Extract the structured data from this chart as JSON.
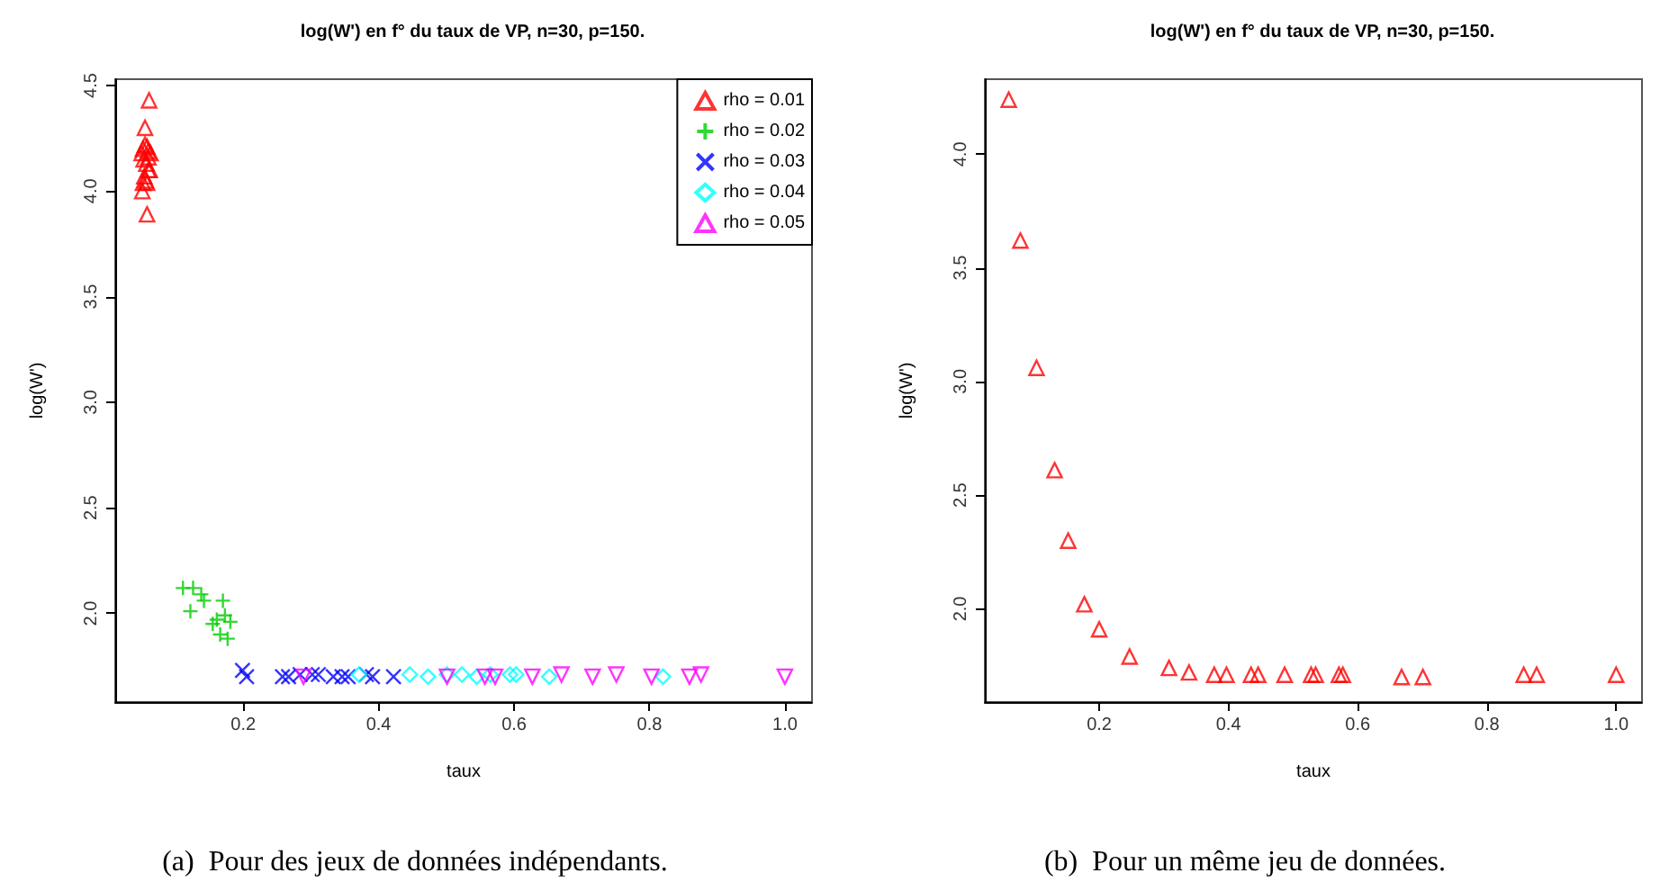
{
  "chart_data": [
    {
      "type": "scatter",
      "title": "log(W') en f° du taux de VP, n=30, p=150.",
      "xlabel": "taux",
      "ylabel": "log(W')",
      "annotations": [
        "(a)  Pour des jeux de données indépendants."
      ],
      "xlim": [
        0.011,
        1.04
      ],
      "ylim": [
        1.58,
        4.53
      ],
      "xticks": [
        {
          "value": 0.2,
          "label": "0.2"
        },
        {
          "value": 0.4,
          "label": "0.4"
        },
        {
          "value": 0.6,
          "label": "0.6"
        },
        {
          "value": 0.8,
          "label": "0.8"
        },
        {
          "value": 1,
          "label": "1.0"
        }
      ],
      "yticks": [
        {
          "value": 2,
          "label": "2.0"
        },
        {
          "value": 2.5,
          "label": "2.5"
        },
        {
          "value": 3,
          "label": "3.0"
        },
        {
          "value": 3.5,
          "label": "3.5"
        },
        {
          "value": 4,
          "label": "4.0"
        },
        {
          "value": 4.5,
          "label": "4.5"
        }
      ],
      "grid": false,
      "legend": "top right",
      "series": [
        {
          "name": "rho = 0.01",
          "color": "#ff0000",
          "marker": "triangle",
          "x": [
            0.061,
            0.055,
            0.051,
            0.058,
            0.05,
            0.052,
            0.055,
            0.058,
            0.06,
            0.063,
            0.053,
            0.057,
            0.06,
            0.062,
            0.054,
            0.056,
            0.058,
            0.052,
            0.06
          ],
          "values": [
            4.43,
            4.3,
            4.0,
            3.89,
            4.18,
            4.2,
            4.22,
            4.21,
            4.19,
            4.18,
            4.15,
            4.13,
            4.1,
            4.1,
            4.07,
            4.05,
            4.04,
            4.04,
            4.16
          ]
        },
        {
          "name": "rho = 0.02",
          "color": "#00cd00",
          "marker": "plus",
          "x": [
            0.111,
            0.126,
            0.138,
            0.142,
            0.122,
            0.155,
            0.17,
            0.173,
            0.166,
            0.177,
            0.181,
            0.161
          ],
          "values": [
            2.12,
            2.12,
            2.09,
            2.06,
            2.01,
            1.95,
            2.06,
            1.99,
            1.9,
            1.88,
            1.96,
            1.97
          ]
        },
        {
          "name": "rho = 0.03",
          "color": "#0000ff",
          "marker": "x",
          "x": [
            0.199,
            0.205,
            0.258,
            0.267,
            0.284,
            0.302,
            0.311,
            0.333,
            0.346,
            0.355,
            0.382,
            0.391,
            0.422
          ],
          "values": [
            1.73,
            1.7,
            1.7,
            1.7,
            1.71,
            1.71,
            1.71,
            1.7,
            1.7,
            1.7,
            1.71,
            1.7,
            1.7
          ]
        },
        {
          "name": "rho = 0.04",
          "color": "#00ffff",
          "marker": "diamond",
          "x": [
            0.371,
            0.446,
            0.473,
            0.501,
            0.523,
            0.545,
            0.565,
            0.594,
            0.603,
            0.652,
            0.82
          ],
          "values": [
            1.71,
            1.71,
            1.7,
            1.71,
            1.71,
            1.7,
            1.71,
            1.71,
            1.71,
            1.7,
            1.7
          ]
        },
        {
          "name": "rho = 0.05",
          "color": "#ff00ff",
          "marker": "triangle-down",
          "x": [
            0.289,
            0.501,
            0.557,
            0.572,
            0.627,
            0.67,
            0.716,
            0.751,
            0.803,
            0.859,
            0.876,
            1.0
          ],
          "values": [
            1.7,
            1.7,
            1.7,
            1.7,
            1.7,
            1.71,
            1.7,
            1.71,
            1.7,
            1.7,
            1.71,
            1.7
          ]
        }
      ]
    },
    {
      "type": "scatter",
      "title": "log(W') en f° du taux de VP, n=30, p=150.",
      "xlabel": "taux",
      "ylabel": "log(W')",
      "annotations": [
        "(b)  Pour un même jeu de données."
      ],
      "xlim": [
        0.023,
        1.04
      ],
      "ylim": [
        1.59,
        4.33
      ],
      "xticks": [
        {
          "value": 0.2,
          "label": "0.2"
        },
        {
          "value": 0.4,
          "label": "0.4"
        },
        {
          "value": 0.6,
          "label": "0.6"
        },
        {
          "value": 0.8,
          "label": "0.8"
        },
        {
          "value": 1,
          "label": "1.0"
        }
      ],
      "yticks": [
        {
          "value": 2,
          "label": "2.0"
        },
        {
          "value": 2.5,
          "label": "2.5"
        },
        {
          "value": 3,
          "label": "3.0"
        },
        {
          "value": 3.5,
          "label": "3.5"
        },
        {
          "value": 4,
          "label": "4.0"
        }
      ],
      "grid": false,
      "series": [
        {
          "color": "#ff0000",
          "marker": "triangle",
          "x": [
            0.06,
            0.078,
            0.103,
            0.131,
            0.152,
            0.177,
            0.2,
            0.247,
            0.308,
            0.339,
            0.378,
            0.397,
            0.435,
            0.446,
            0.487,
            0.528,
            0.535,
            0.571,
            0.577,
            0.668,
            0.701,
            0.857,
            0.877,
            1.0
          ],
          "values": [
            4.24,
            3.62,
            3.06,
            2.61,
            2.3,
            2.02,
            1.91,
            1.79,
            1.74,
            1.72,
            1.71,
            1.71,
            1.71,
            1.71,
            1.71,
            1.71,
            1.71,
            1.71,
            1.71,
            1.7,
            1.7,
            1.71,
            1.71,
            1.71
          ]
        }
      ]
    }
  ]
}
